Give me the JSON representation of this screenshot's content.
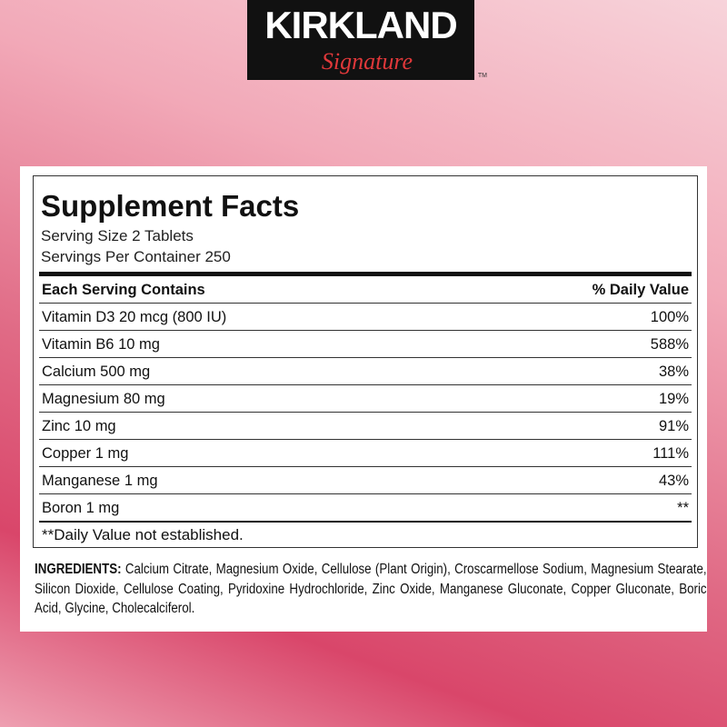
{
  "brand": {
    "name": "KIRKLAND",
    "sub": "Signature",
    "tm": "TM"
  },
  "facts": {
    "title": "Supplement Facts",
    "serving_size": "Serving Size 2 Tablets",
    "servings_per_container": "Servings Per Container 250",
    "header": {
      "left": "Each Serving Contains",
      "right": "% Daily Value"
    },
    "rows": [
      {
        "name": "Vitamin D3 20 mcg (800 IU)",
        "dv": "100%"
      },
      {
        "name": "Vitamin B6 10 mg",
        "dv": "588%"
      },
      {
        "name": "Calcium 500 mg",
        "dv": "38%"
      },
      {
        "name": "Magnesium 80 mg",
        "dv": "19%"
      },
      {
        "name": "Zinc 10 mg",
        "dv": "91%"
      },
      {
        "name": "Copper 1 mg",
        "dv": "111%"
      },
      {
        "name": "Manganese 1 mg",
        "dv": "43%"
      },
      {
        "name": "Boron 1 mg",
        "dv": "**"
      }
    ],
    "footnote": "**Daily Value not established."
  },
  "ingredients": {
    "label": "INGREDIENTS:",
    "text": "Calcium Citrate, Magnesium Oxide, Cellulose (Plant Origin), Croscarmellose Sodium, Magnesium Stearate, Silicon Dioxide, Cellulose Coating, Pyridoxine Hydrochloride, Zinc Oxide, Manganese Gluconate, Copper Gluconate, Boric Acid, Glycine, Cholecalciferol."
  }
}
